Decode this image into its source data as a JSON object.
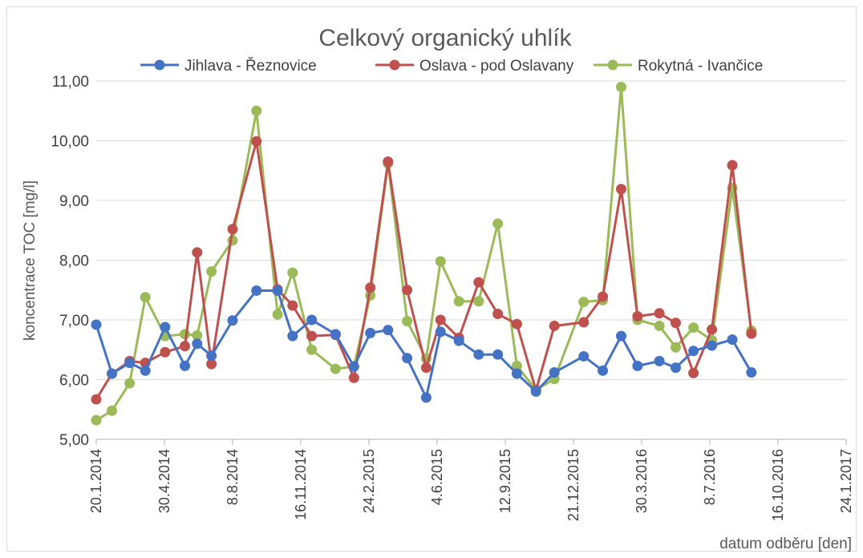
{
  "chart_data": {
    "type": "line",
    "title": "Celkový organický uhlík",
    "xlabel": "datum odběru [den]",
    "ylabel": "koncentrace TOC [mg/l]",
    "y_range": [
      5,
      11
    ],
    "y_ticks": [
      "5,00",
      "6,00",
      "7,00",
      "8,00",
      "9,00",
      "10,00",
      "11,00"
    ],
    "x_range": [
      "20.1.2014",
      "24.1.2017"
    ],
    "x_ticks": [
      "20.1.2014",
      "30.4.2014",
      "8.8.2014",
      "16.11.2014",
      "24.2.2015",
      "4.6.2015",
      "12.9.2015",
      "21.12.2015",
      "30.3.2016",
      "8.7.2016",
      "16.10.2016",
      "24.1.2017"
    ],
    "grid": true,
    "legend_position": "top",
    "x_dates": [
      "20.1.2014",
      "12.2.2014",
      "10.3.2014",
      "2.4.2014",
      "1.5.2014",
      "30.5.2014",
      "17.6.2014",
      "8.7.2014",
      "8.8.2014",
      "12.9.2014",
      "13.10.2014",
      "4.11.2014",
      "2.12.2014",
      "6.1.2015",
      "2.2.2015",
      "26.2.2015",
      "24.3.2015",
      "21.4.2015",
      "19.5.2015",
      "9.6.2015",
      "6.7.2015",
      "4.8.2015",
      "1.9.2015",
      "29.9.2015",
      "27.10.2015",
      "23.11.2015",
      "5.1.2016",
      "2.2.2016",
      "29.2.2016",
      "24.3.2016",
      "25.4.2016",
      "19.5.2016",
      "14.6.2016",
      "11.7.2016",
      "10.8.2016",
      "7.9.2016",
      "5.10.2016",
      "2.11.2016",
      "30.11.2016"
    ],
    "series": [
      {
        "name": "Jihlava - Řeznovice",
        "color": "#4472c4",
        "values": [
          6.92,
          6.1,
          6.28,
          6.15,
          6.88,
          6.23,
          6.6,
          6.4,
          6.99,
          7.49,
          7.49,
          6.73,
          7.0,
          6.76,
          6.22,
          6.78,
          6.83,
          6.36,
          5.7,
          6.8,
          6.65,
          6.42,
          6.42,
          6.1,
          5.8,
          6.12,
          6.39,
          6.15,
          6.73,
          6.23,
          6.31,
          6.2,
          6.48,
          6.57,
          6.67,
          6.12,
          null,
          null,
          null
        ]
      },
      {
        "name": "Oslava - pod Oslavany",
        "color": "#c0504d",
        "values": [
          5.67,
          6.1,
          6.31,
          6.28,
          6.46,
          6.56,
          8.13,
          6.26,
          8.52,
          9.99,
          7.51,
          7.24,
          6.73,
          6.75,
          6.03,
          7.54,
          9.65,
          7.5,
          6.2,
          7.0,
          6.7,
          7.63,
          7.1,
          6.93,
          5.82,
          6.9,
          6.96,
          7.39,
          9.19,
          7.06,
          7.11,
          6.95,
          6.11,
          6.84,
          9.59,
          6.77,
          null,
          null,
          null
        ]
      },
      {
        "name": "Rokytná - Ivančice",
        "color": "#9bbb59",
        "values": [
          5.32,
          5.48,
          5.94,
          7.38,
          6.73,
          6.76,
          6.74,
          7.81,
          8.33,
          10.5,
          7.09,
          7.79,
          6.5,
          6.18,
          6.22,
          7.41,
          9.62,
          6.98,
          6.35,
          7.98,
          7.31,
          7.31,
          8.61,
          6.23,
          5.83,
          6.01,
          7.3,
          7.33,
          10.9,
          7.0,
          6.9,
          6.54,
          6.87,
          6.66,
          9.21,
          6.82,
          null,
          null,
          null
        ]
      }
    ]
  }
}
